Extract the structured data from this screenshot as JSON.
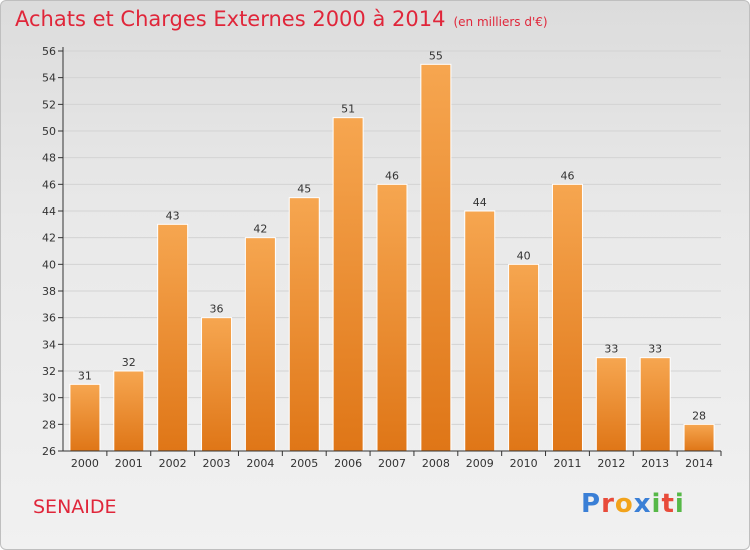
{
  "header": {
    "title": "Achats et Charges Externes 2000 à 2014",
    "unit": "(en milliers d'€)"
  },
  "commune": "SENAIDE",
  "logo": {
    "text": "Proxiti",
    "colors": [
      "#3a7fd6",
      "#e84b3a",
      "#f2a31b",
      "#3a7fd6",
      "#56b847",
      "#e84b3a",
      "#56b847"
    ]
  },
  "colors": {
    "bar_top": "#f6a650",
    "bar_bottom": "#df7617",
    "axis": "#333333",
    "grid": "#d3d3d3",
    "title": "#e0263a"
  },
  "chart_data": {
    "type": "bar",
    "title": "Achats et Charges Externes 2000 à 2014",
    "xlabel": "",
    "ylabel": "",
    "categories": [
      "2000",
      "2001",
      "2002",
      "2003",
      "2004",
      "2005",
      "2006",
      "2007",
      "2008",
      "2009",
      "2010",
      "2011",
      "2012",
      "2013",
      "2014"
    ],
    "values": [
      31,
      32,
      43,
      36,
      42,
      45,
      51,
      46,
      55,
      44,
      40,
      46,
      33,
      33,
      28
    ],
    "ylim": [
      26,
      56
    ],
    "yticks": [
      26,
      28,
      30,
      32,
      34,
      36,
      38,
      40,
      42,
      44,
      46,
      48,
      50,
      52,
      54,
      56
    ],
    "grid": true
  }
}
